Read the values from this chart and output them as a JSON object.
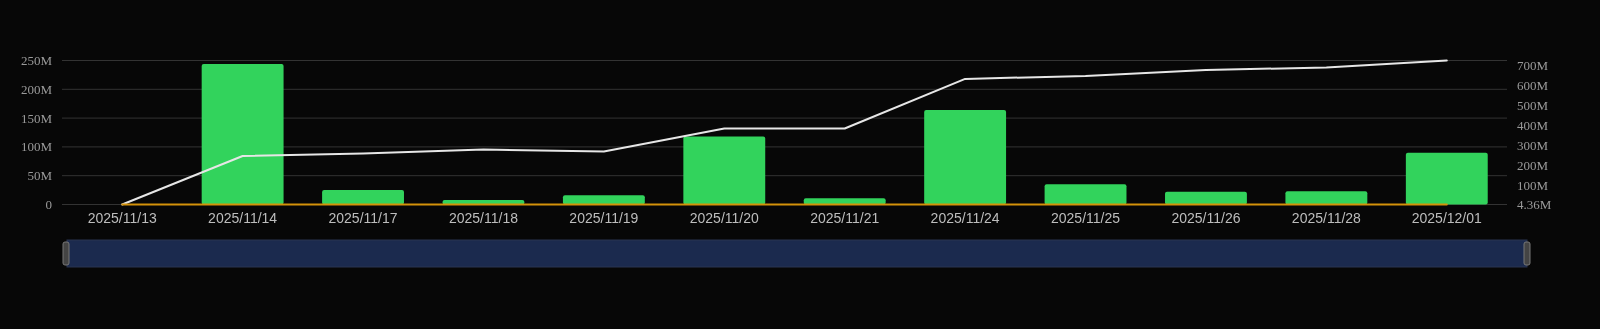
{
  "chart_data": {
    "type": "bar",
    "categories": [
      "2025/11/13",
      "2025/11/14",
      "2025/11/17",
      "2025/11/18",
      "2025/11/19",
      "2025/11/20",
      "2025/11/21",
      "2025/11/24",
      "2025/11/25",
      "2025/11/26",
      "2025/11/28",
      "2025/12/01"
    ],
    "series": [
      {
        "color": "#32d35c",
        "values": [
          0,
          244,
          25,
          8,
          16,
          118,
          11,
          164,
          35,
          22,
          23,
          90
        ]
      },
      {
        "type": "line",
        "axis": "y2",
        "color": "#e6e6e6",
        "values": [
          4.36,
          247,
          259,
          279,
          269,
          384,
          384,
          632,
          647,
          677,
          689,
          724
        ]
      },
      {
        "type": "line",
        "color": "#d4920a",
        "values": [
          0,
          0,
          0,
          0,
          0,
          0,
          0,
          0,
          0,
          0,
          0,
          0
        ]
      }
    ],
    "ylim": [
      0,
      250
    ],
    "yticks": [
      {
        "value": 0,
        "label": "0"
      },
      {
        "value": 50,
        "label": "50M"
      },
      {
        "value": 100,
        "label": "100M"
      },
      {
        "value": 150,
        "label": "150M"
      },
      {
        "value": 200,
        "label": "200M"
      },
      {
        "value": 250,
        "label": "250M"
      }
    ],
    "y2lim": [
      4.36,
      724
    ],
    "y2ticks": [
      {
        "value": 4.36,
        "label": "4.36M"
      },
      {
        "value": 100,
        "label": "100M"
      },
      {
        "value": 200,
        "label": "200M"
      },
      {
        "value": 300,
        "label": "300M"
      },
      {
        "value": 400,
        "label": "400M"
      },
      {
        "value": 500,
        "label": "500M"
      },
      {
        "value": 600,
        "label": "600M"
      },
      {
        "value": 700,
        "label": "700M"
      }
    ],
    "grid": "y",
    "marker": "none"
  }
}
